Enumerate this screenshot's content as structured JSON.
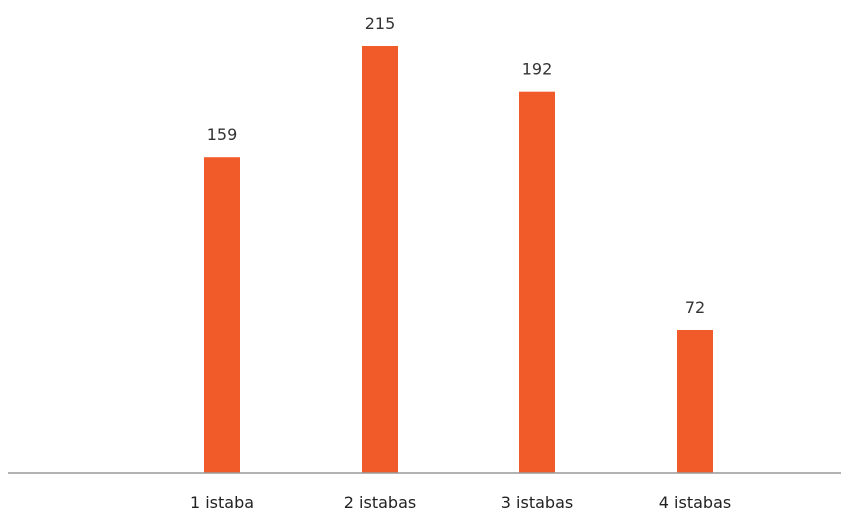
{
  "chart_data": {
    "type": "bar",
    "categories": [
      "1 istaba",
      "2 istabas",
      "3 istabas",
      "4 istabas"
    ],
    "values": [
      159,
      215,
      192,
      72
    ],
    "data_labels": [
      "159",
      "215",
      "192",
      "72"
    ],
    "title": "",
    "xlabel": "",
    "ylabel": "",
    "ylim": [
      0,
      215
    ],
    "grid": false,
    "legend": "none",
    "colors": {
      "bar": "#F15A29",
      "axis": "#999999"
    }
  }
}
